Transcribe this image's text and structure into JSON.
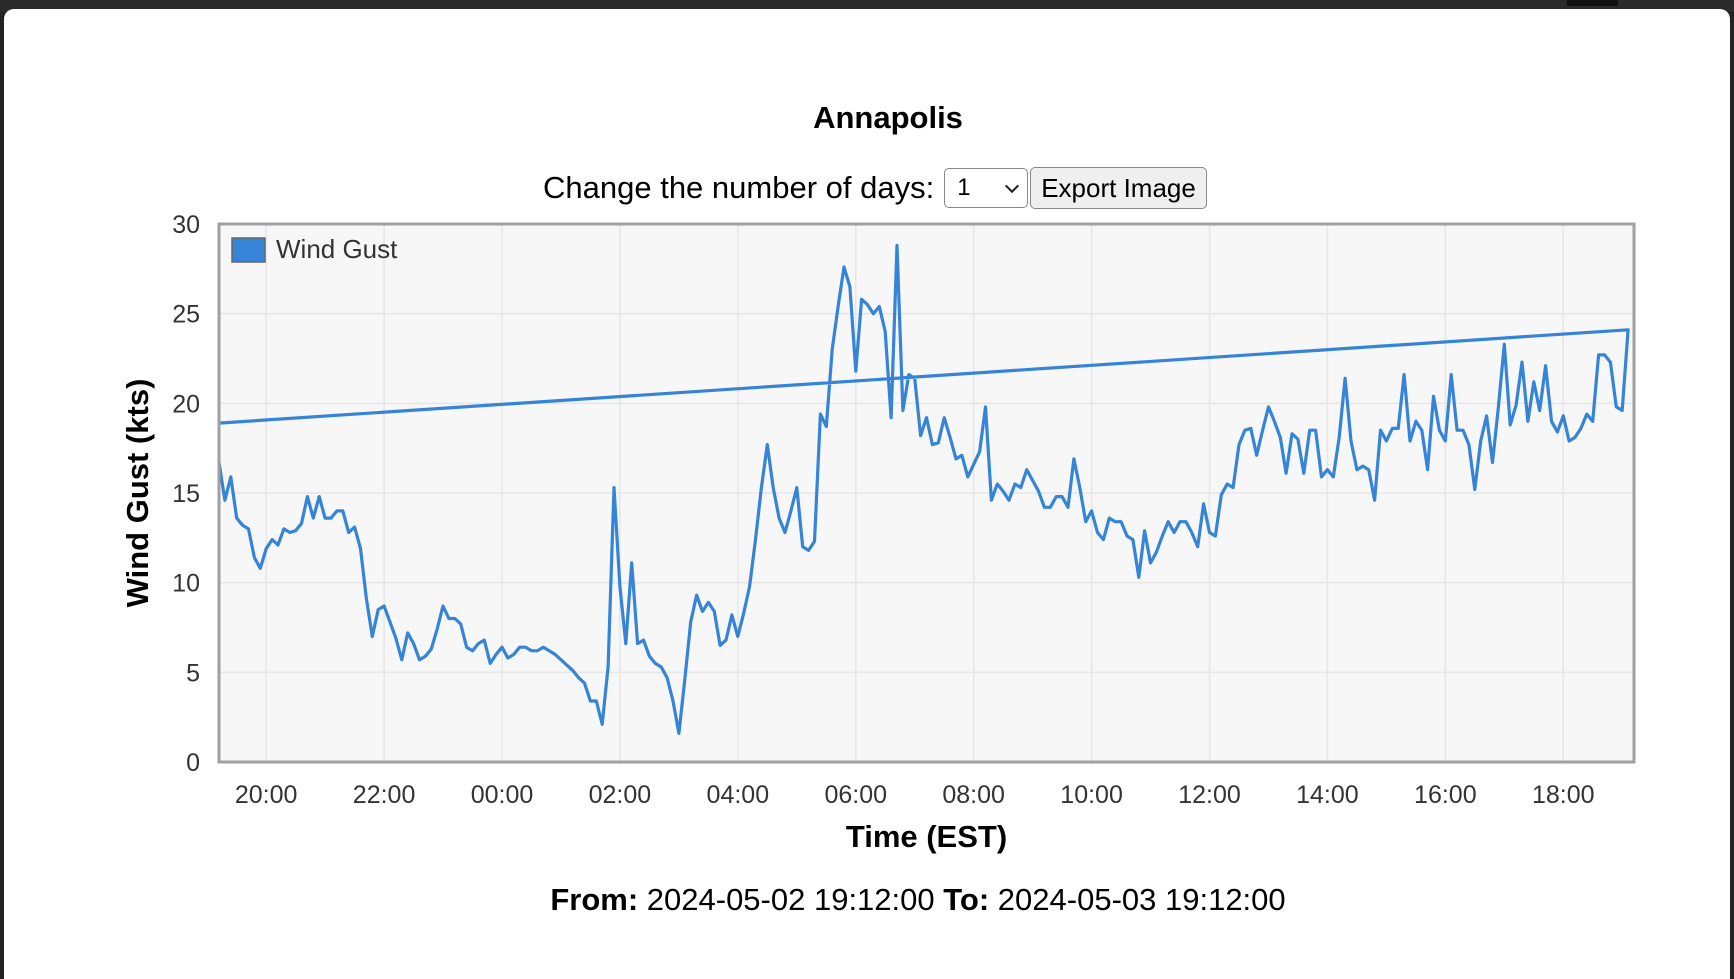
{
  "page": {
    "title": "Annapolis",
    "controls": {
      "label": "Change the number of days:",
      "days_value": "1",
      "export_label": "Export Image"
    },
    "range": {
      "from_label": "From:",
      "from_value": "2024-05-02 19:12:00",
      "to_label": "To:",
      "to_value": "2024-05-03 19:12:00"
    }
  },
  "chart_data": {
    "type": "line",
    "title": "",
    "xlabel": "Time (EST)",
    "ylabel": "Wind Gust (kts)",
    "ylim": [
      0,
      30
    ],
    "yticks": [
      0,
      5,
      10,
      15,
      20,
      25,
      30
    ],
    "xlim": [
      "2024-05-02 19:12",
      "2024-05-03 19:12"
    ],
    "xticks": [
      "20:00",
      "22:00",
      "00:00",
      "02:00",
      "04:00",
      "06:00",
      "08:00",
      "10:00",
      "12:00",
      "14:00",
      "16:00",
      "18:00"
    ],
    "grid": true,
    "legend": "top-left",
    "colors": {
      "series": "#3584d8",
      "plot_bg": "#f7f7f7",
      "grid": "#e6e6e6",
      "frame": "#a0a0a0"
    },
    "series": [
      {
        "name": "Wind Gust",
        "x": [
          "19:12",
          "19:18",
          "19:24",
          "19:30",
          "19:36",
          "19:42",
          "19:48",
          "19:54",
          "20:00",
          "20:06",
          "20:12",
          "20:18",
          "20:24",
          "20:30",
          "20:36",
          "20:42",
          "20:48",
          "20:54",
          "21:00",
          "21:06",
          "21:12",
          "21:18",
          "21:24",
          "21:30",
          "21:36",
          "21:42",
          "21:48",
          "21:54",
          "22:00",
          "22:06",
          "22:12",
          "22:18",
          "22:24",
          "22:30",
          "22:36",
          "22:42",
          "22:48",
          "22:54",
          "23:00",
          "23:06",
          "23:12",
          "23:18",
          "23:24",
          "23:30",
          "23:36",
          "23:42",
          "23:48",
          "23:54",
          "00:00",
          "00:06",
          "00:12",
          "00:18",
          "00:24",
          "00:30",
          "00:36",
          "00:42",
          "00:48",
          "00:54",
          "01:00",
          "01:06",
          "01:12",
          "01:18",
          "01:24",
          "01:30",
          "01:36",
          "01:42",
          "01:48",
          "01:54",
          "02:00",
          "02:06",
          "02:12",
          "02:18",
          "02:24",
          "02:30",
          "02:36",
          "02:42",
          "02:48",
          "02:54",
          "03:00",
          "03:06",
          "03:12",
          "03:18",
          "03:24",
          "03:30",
          "03:36",
          "03:42",
          "03:48",
          "03:54",
          "04:00",
          "04:06",
          "04:12",
          "04:18",
          "04:24",
          "04:30",
          "04:36",
          "04:42",
          "04:48",
          "04:54",
          "05:00",
          "05:06",
          "05:12",
          "05:18",
          "05:24",
          "05:30",
          "05:36",
          "05:42",
          "05:48",
          "05:54",
          "06:00",
          "06:06",
          "06:12",
          "06:18",
          "06:24",
          "06:30",
          "06:36",
          "06:42",
          "06:48",
          "06:54",
          "07:00",
          "07:06",
          "07:12",
          "07:18",
          "07:24",
          "07:30",
          "07:36",
          "07:42",
          "07:48",
          "07:54",
          "08:00",
          "08:06",
          "08:12",
          "08:18",
          "08:24",
          "08:30",
          "08:36",
          "08:42",
          "08:48",
          "08:54",
          "09:00",
          "09:06",
          "09:12",
          "09:18",
          "09:24",
          "09:30",
          "09:36",
          "09:42",
          "09:48",
          "09:54",
          "10:00",
          "10:06",
          "10:12",
          "10:18",
          "10:24",
          "10:30",
          "10:36",
          "10:42",
          "10:48",
          "10:54",
          "11:00",
          "11:06",
          "11:12",
          "11:18",
          "11:24",
          "11:30",
          "11:36",
          "11:42",
          "11:48",
          "11:54",
          "12:00",
          "12:06",
          "12:12",
          "12:18",
          "12:24",
          "12:30",
          "12:36",
          "12:42",
          "12:48",
          "12:54",
          "13:00",
          "13:06",
          "13:12",
          "13:18",
          "13:24",
          "13:30",
          "13:36",
          "13:42",
          "13:48",
          "13:54",
          "14:00",
          "14:06",
          "14:12",
          "14:18",
          "14:24",
          "14:30",
          "14:36",
          "14:42",
          "14:48",
          "14:54",
          "15:00",
          "15:06",
          "15:12",
          "15:18",
          "15:24",
          "15:30",
          "15:36",
          "15:42",
          "15:48",
          "15:54",
          "16:00",
          "16:06",
          "16:12",
          "16:18",
          "16:24",
          "16:30",
          "16:36",
          "16:42",
          "16:48",
          "16:54",
          "17:00",
          "17:06",
          "17:12",
          "17:18",
          "17:24",
          "17:30",
          "17:36",
          "17:42",
          "17:48",
          "17:54",
          "18:00",
          "18:06",
          "18:12",
          "18:18",
          "18:24",
          "18:30",
          "18:36",
          "18:42",
          "18:48",
          "18:54",
          "19:00",
          "19:06",
          "19:12"
        ],
        "values": [
          16.7,
          14.6,
          15.9,
          13.6,
          13.2,
          13.0,
          11.4,
          10.8,
          11.9,
          12.4,
          12.1,
          13.0,
          12.8,
          12.9,
          13.3,
          14.8,
          13.6,
          14.8,
          13.6,
          13.6,
          14.0,
          14.0,
          12.8,
          13.1,
          11.9,
          9.1,
          7.0,
          8.5,
          8.7,
          7.8,
          6.9,
          5.7,
          7.2,
          6.6,
          5.7,
          5.9,
          6.3,
          7.4,
          8.7,
          8.0,
          8.0,
          7.7,
          6.4,
          6.2,
          6.6,
          6.8,
          5.5,
          6.0,
          6.4,
          5.8,
          6.0,
          6.4,
          6.4,
          6.2,
          6.2,
          6.4,
          6.2,
          6.0,
          5.7,
          5.4,
          5.1,
          4.7,
          4.4,
          3.4,
          3.4,
          2.1,
          5.3,
          15.3,
          9.8,
          6.6,
          11.1,
          6.6,
          6.8,
          5.9,
          5.5,
          5.3,
          4.7,
          3.4,
          1.6,
          4.6,
          7.8,
          9.3,
          8.4,
          8.9,
          8.4,
          6.5,
          6.8,
          8.2,
          7.0,
          8.3,
          9.8,
          12.4,
          15.3,
          17.7,
          15.3,
          13.6,
          12.8,
          14.0,
          15.3,
          12.0,
          11.8,
          12.3,
          19.4,
          18.7,
          23.0,
          25.4,
          27.6,
          26.5,
          21.8,
          25.8,
          25.5,
          25.0,
          25.4,
          24.0,
          19.2,
          28.8,
          19.6,
          21.6,
          21.4,
          18.2,
          19.2,
          17.7,
          17.8,
          19.2,
          18.1,
          16.9,
          17.1,
          15.9,
          16.6,
          17.3,
          19.8,
          14.6,
          15.5,
          15.1,
          14.6,
          15.5,
          15.3,
          16.3,
          15.7,
          15.1,
          14.2,
          14.2,
          14.8,
          14.8,
          14.2,
          16.9,
          15.3,
          13.4,
          14.0,
          12.8,
          12.4,
          13.6,
          13.4,
          13.4,
          12.6,
          12.4,
          10.3,
          12.9,
          11.1,
          11.7,
          12.6,
          13.4,
          12.8,
          13.4,
          13.4,
          12.8,
          12.0,
          14.4,
          12.8,
          12.6,
          14.9,
          15.5,
          15.3,
          17.7,
          18.5,
          18.6,
          17.1,
          18.5,
          19.8,
          19.0,
          18.1,
          16.1,
          18.3,
          18.0,
          16.1,
          18.5,
          18.5,
          15.9,
          16.3,
          15.9,
          18.1,
          21.4,
          17.9,
          16.3,
          16.5,
          16.3,
          14.6,
          18.5,
          17.9,
          18.6,
          18.6,
          21.6,
          17.9,
          19.0,
          18.5,
          16.3,
          20.4,
          18.5,
          17.9,
          21.6,
          18.5,
          18.5,
          17.7,
          15.2,
          17.9,
          19.3,
          16.7,
          19.8,
          23.3,
          18.8,
          19.9,
          22.3,
          19.0,
          21.2,
          19.6,
          22.1,
          19.0,
          18.4,
          19.3,
          17.9,
          18.1,
          18.6,
          19.4,
          19.0,
          22.7,
          22.7,
          22.3,
          19.8,
          19.6,
          24.1,
          18.9
        ]
      }
    ]
  }
}
